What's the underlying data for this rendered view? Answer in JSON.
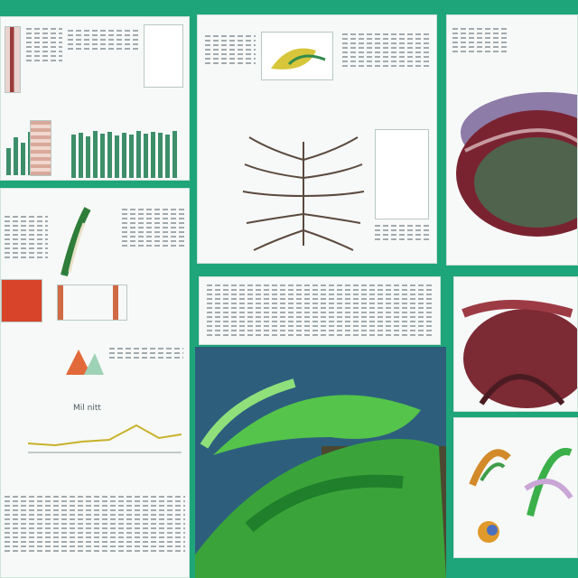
{
  "collage": {
    "theme_color": "#1fa57a",
    "panels": [
      {
        "name": "top-left-charts-panel"
      },
      {
        "name": "top-center-diagram-panel"
      },
      {
        "name": "top-right-anatomy-panel"
      },
      {
        "name": "mid-left-data-panel"
      },
      {
        "name": "center-table-panel"
      },
      {
        "name": "bottom-center-plant-image"
      },
      {
        "name": "right-anatomy-panel"
      },
      {
        "name": "bottom-right-specimen-panel"
      }
    ],
    "line_chart_caption": "Mil nitt"
  }
}
